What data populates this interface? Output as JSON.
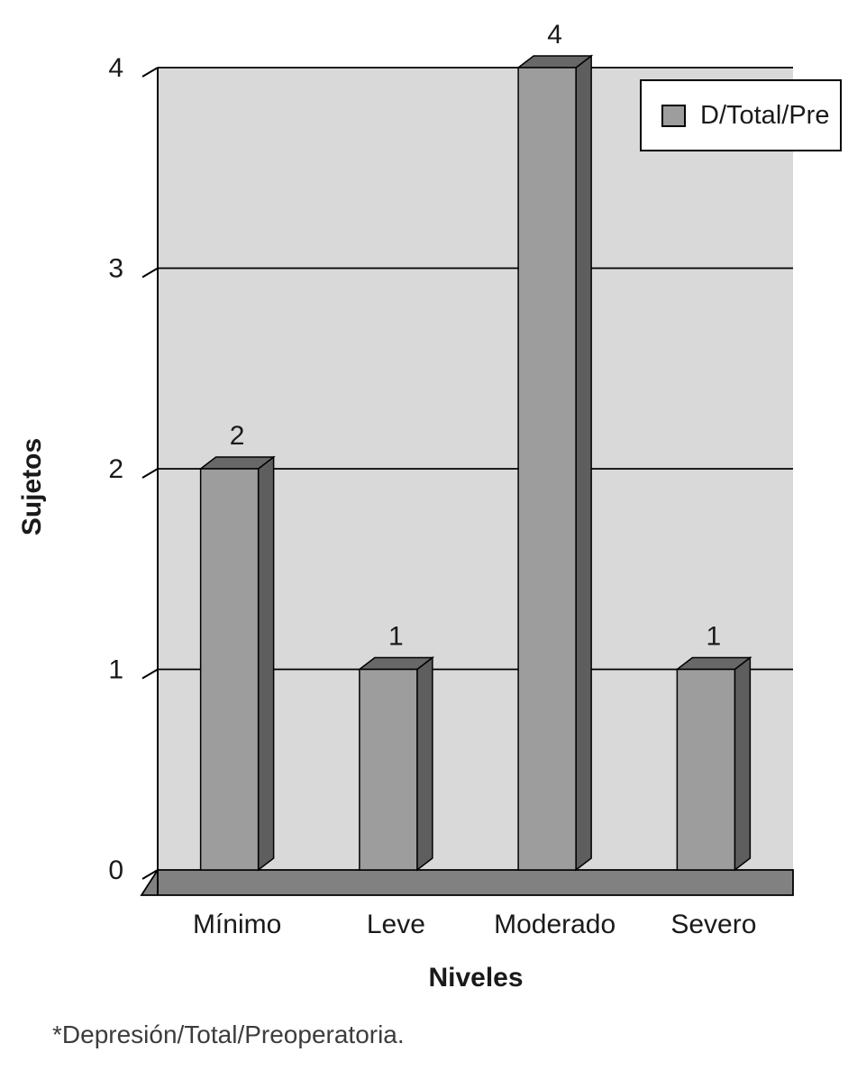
{
  "chart_data": {
    "type": "bar",
    "title": "",
    "categories": [
      "Mínimo",
      "Leve",
      "Moderado",
      "Severo"
    ],
    "values": [
      2,
      1,
      4,
      1
    ],
    "series": [
      {
        "name": "D/Total/Pre",
        "values": [
          2,
          1,
          4,
          1
        ]
      }
    ],
    "xlabel": "Niveles",
    "ylabel": "Sujetos",
    "ylim": [
      0,
      4
    ],
    "ytick_labels": [
      "0",
      "1",
      "2",
      "3",
      "4"
    ],
    "grid": true,
    "legend": {
      "position": "top-right",
      "entries": [
        "D/Total/Pre"
      ]
    },
    "colors": {
      "plot_bg": "#d9d9d9",
      "bar_front": "#9d9d9d",
      "bar_top": "#686868",
      "bar_side": "#5e5e5e",
      "floor": "#818181",
      "axis": "#000000",
      "text": "#1a1a1a"
    }
  },
  "footnote": "*Depresión/Total/Preoperatoria."
}
